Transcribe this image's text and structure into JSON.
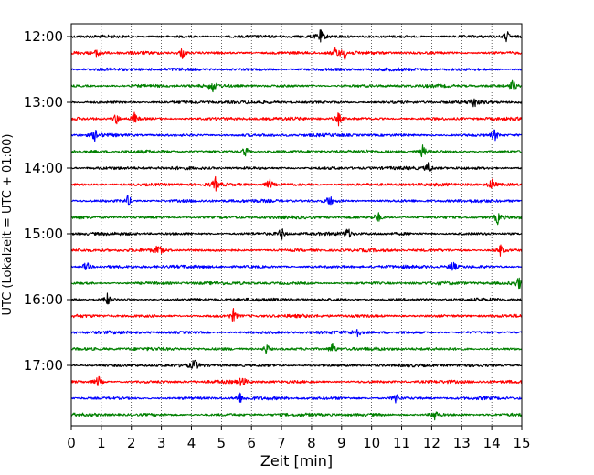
{
  "chart_data": {
    "type": "line",
    "subtype": "helicorder",
    "title": "",
    "xlabel": "Zeit  [min]",
    "ylabel": "UTC (Lokalzeit = UTC + 01:00)",
    "xlim": [
      0,
      15
    ],
    "x_ticks": [
      "0",
      "1",
      "2",
      "3",
      "4",
      "5",
      "6",
      "7",
      "8",
      "9",
      "10",
      "11",
      "12",
      "13",
      "14",
      "15"
    ],
    "y_tick_labels": [
      "12:00",
      "13:00",
      "14:00",
      "15:00",
      "16:00",
      "17:00"
    ],
    "grid": "vertical dotted at each minute",
    "trace_colors": [
      "#000000",
      "#ff0000",
      "#0000ff",
      "#008000"
    ],
    "rows": [
      {
        "start": "12:00",
        "color": "#000000",
        "events": [
          8.3,
          14.5
        ]
      },
      {
        "start": "12:15",
        "color": "#ff0000",
        "events": [
          0.9,
          3.7,
          8.8,
          9.1
        ]
      },
      {
        "start": "12:30",
        "color": "#0000ff",
        "events": []
      },
      {
        "start": "12:45",
        "color": "#008000",
        "events": [
          4.7,
          14.7
        ]
      },
      {
        "start": "13:00",
        "color": "#000000",
        "events": [
          13.4
        ]
      },
      {
        "start": "13:15",
        "color": "#ff0000",
        "events": [
          1.5,
          2.1,
          8.9
        ]
      },
      {
        "start": "13:30",
        "color": "#0000ff",
        "events": [
          0.8,
          14.1
        ]
      },
      {
        "start": "13:45",
        "color": "#008000",
        "events": [
          5.8,
          11.7
        ]
      },
      {
        "start": "14:00",
        "color": "#000000",
        "events": [
          11.9
        ]
      },
      {
        "start": "14:15",
        "color": "#ff0000",
        "events": [
          4.8,
          6.6,
          14.0
        ]
      },
      {
        "start": "14:30",
        "color": "#0000ff",
        "events": [
          1.9,
          8.6
        ]
      },
      {
        "start": "14:45",
        "color": "#008000",
        "events": [
          10.2,
          14.2
        ]
      },
      {
        "start": "15:00",
        "color": "#000000",
        "events": [
          7.0,
          9.2
        ]
      },
      {
        "start": "15:15",
        "color": "#ff0000",
        "events": [
          2.9,
          14.3
        ]
      },
      {
        "start": "15:30",
        "color": "#0000ff",
        "events": [
          0.5,
          12.7
        ]
      },
      {
        "start": "15:45",
        "color": "#008000",
        "events": [
          14.9
        ]
      },
      {
        "start": "16:00",
        "color": "#000000",
        "events": [
          1.2
        ]
      },
      {
        "start": "16:15",
        "color": "#ff0000",
        "events": [
          5.4
        ]
      },
      {
        "start": "16:30",
        "color": "#0000ff",
        "events": [
          9.5
        ]
      },
      {
        "start": "16:45",
        "color": "#008000",
        "events": [
          6.5,
          8.7
        ]
      },
      {
        "start": "17:00",
        "color": "#000000",
        "events": [
          4.1
        ]
      },
      {
        "start": "17:15",
        "color": "#ff0000",
        "events": [
          0.9,
          5.7
        ]
      },
      {
        "start": "17:30",
        "color": "#0000ff",
        "events": [
          5.6,
          10.8
        ]
      },
      {
        "start": "17:45",
        "color": "#008000",
        "events": [
          12.1
        ]
      }
    ]
  }
}
